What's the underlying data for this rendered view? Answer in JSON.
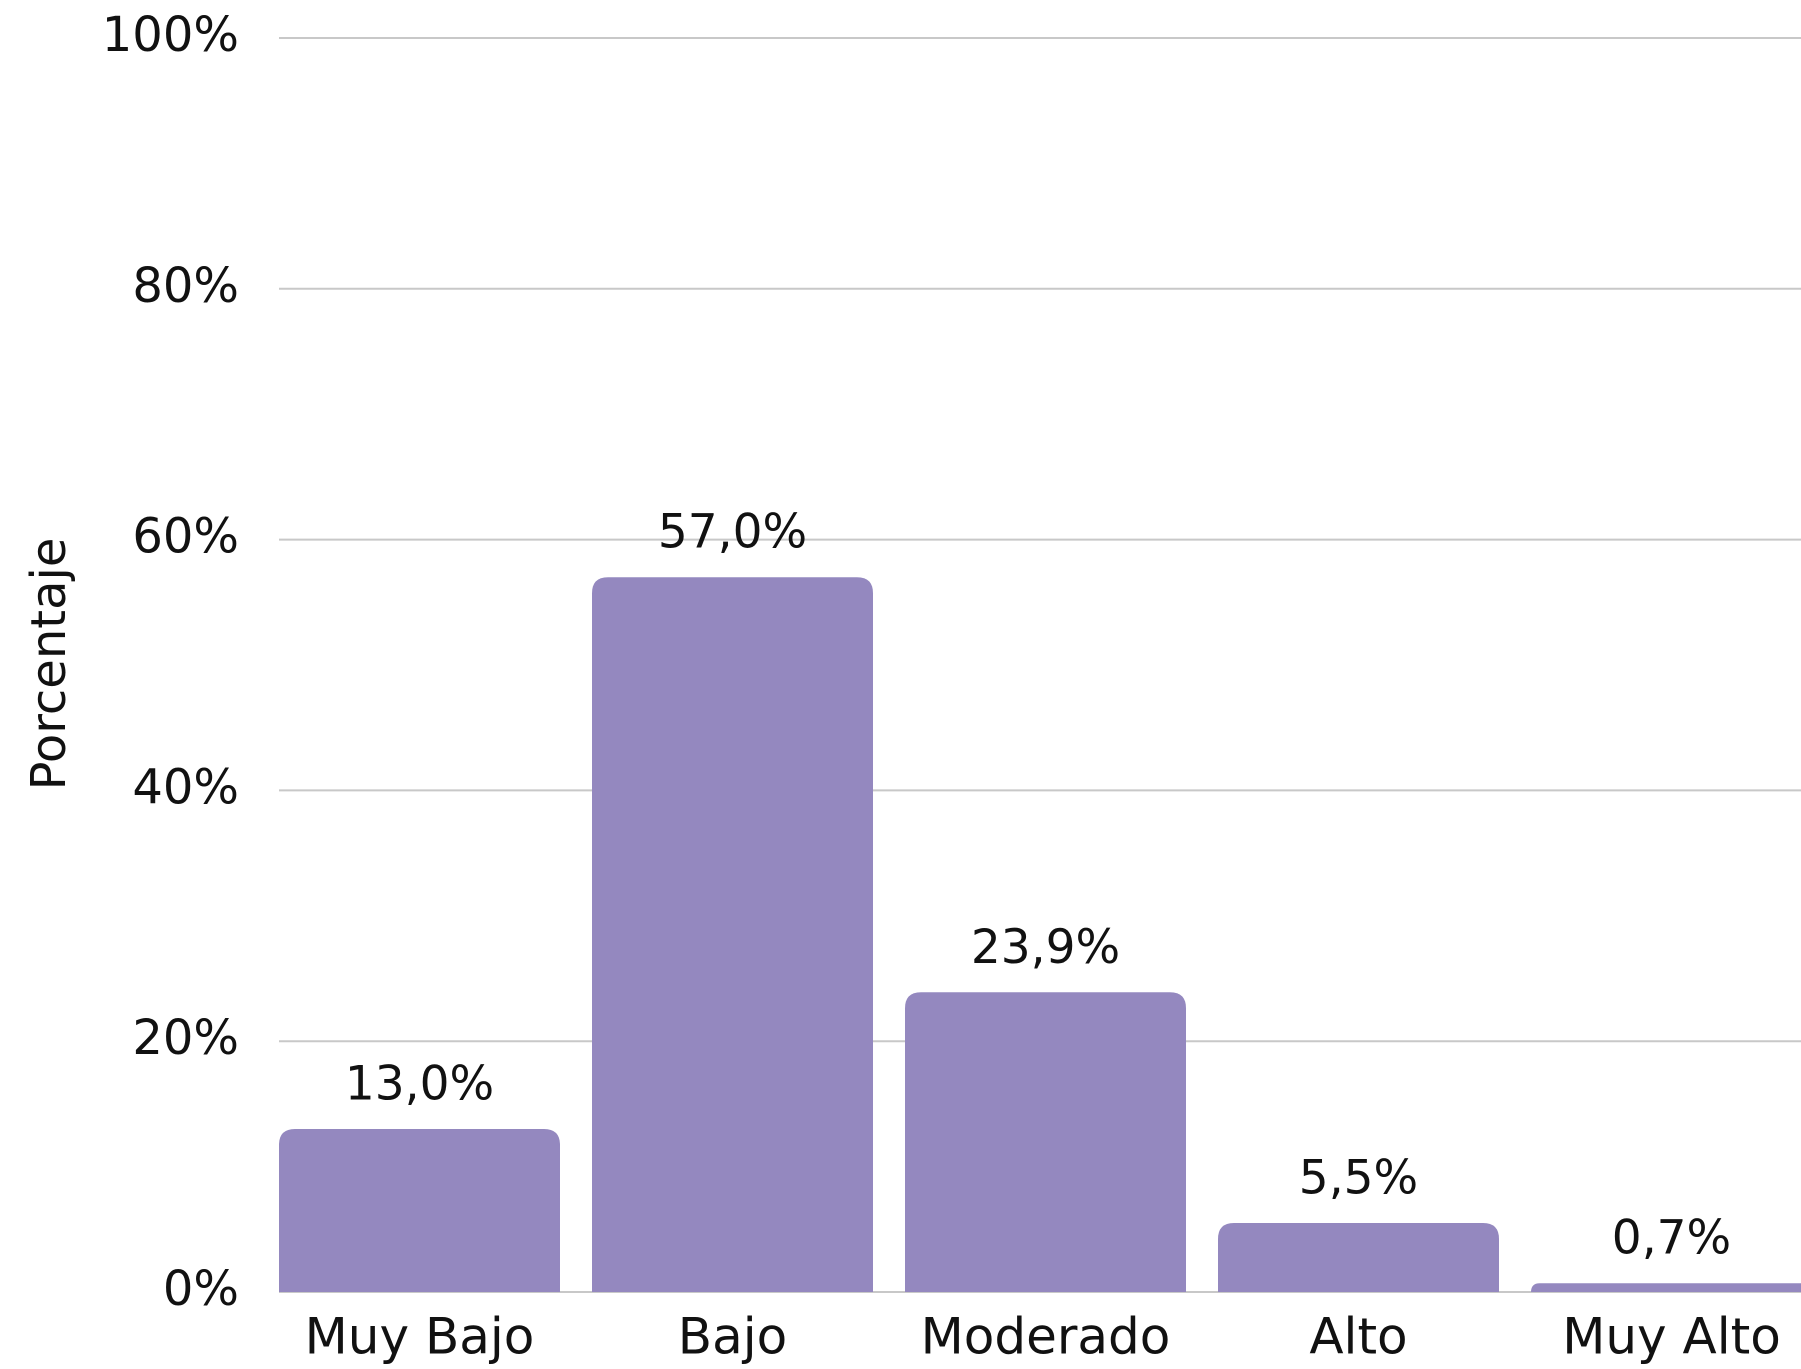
{
  "chart_data": {
    "type": "bar",
    "y_label": "Porcentaje",
    "categories": [
      "Muy Bajo",
      "Bajo",
      "Moderado",
      "Alto",
      "Muy Alto"
    ],
    "values": [
      13.0,
      57.0,
      23.9,
      5.5,
      0.7
    ],
    "value_labels": [
      "13,0%",
      "57,0%",
      "23,9%",
      "5,5%",
      "0,7%"
    ],
    "color": "#9488bf",
    "ylim": [
      0,
      100
    ],
    "yticks": [
      {
        "value": 0,
        "label": "0%"
      },
      {
        "value": 20,
        "label": "20%"
      },
      {
        "value": 40,
        "label": "40%"
      },
      {
        "value": 60,
        "label": "60%"
      },
      {
        "value": 80,
        "label": "80%"
      },
      {
        "value": 100,
        "label": "100%"
      }
    ],
    "grid": true
  }
}
